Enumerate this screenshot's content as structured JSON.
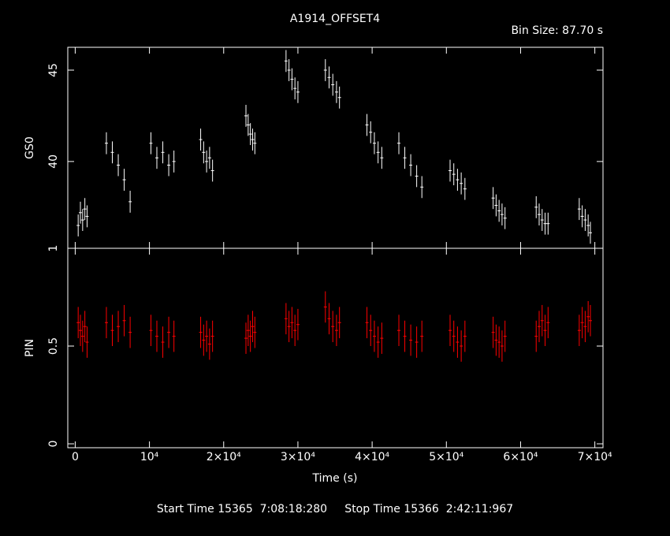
{
  "chart_data": [
    {
      "type": "scatter",
      "title": "A1914_OFFSET4",
      "subtitle": "Bin Size: 87.70 s",
      "ylabel": "GS0",
      "color": "#ffffff",
      "x": [
        400,
        700,
        1000,
        1300,
        1600,
        4200,
        5000,
        5800,
        6600,
        7400,
        10200,
        11000,
        11800,
        12600,
        13300,
        16900,
        17300,
        17700,
        18100,
        18500,
        23000,
        23300,
        23600,
        23900,
        24200,
        28400,
        28800,
        29200,
        29600,
        30000,
        33700,
        34200,
        34700,
        35200,
        35600,
        39300,
        39800,
        40300,
        40800,
        41300,
        43600,
        44400,
        45200,
        46000,
        46700,
        50500,
        51000,
        51500,
        52000,
        52500,
        56300,
        56700,
        57100,
        57500,
        57900,
        62100,
        62500,
        62900,
        63300,
        63700,
        67900,
        68300,
        68700,
        69100,
        69400
      ],
      "values": [
        36.5,
        37.2,
        36.8,
        37.4,
        37.0,
        41.0,
        40.5,
        39.8,
        39.0,
        37.8,
        41.0,
        40.2,
        40.5,
        39.8,
        40.0,
        41.2,
        40.5,
        40.0,
        40.2,
        39.5,
        42.5,
        42.0,
        41.5,
        41.2,
        41.0,
        45.5,
        45.0,
        44.5,
        44.0,
        43.8,
        45.0,
        44.6,
        44.2,
        43.8,
        43.5,
        42.0,
        41.6,
        41.0,
        40.5,
        40.2,
        41.0,
        40.2,
        39.8,
        39.2,
        38.6,
        39.5,
        39.3,
        39.0,
        38.8,
        38.5,
        38.0,
        37.6,
        37.3,
        37.1,
        36.9,
        37.5,
        37.1,
        36.8,
        36.6,
        36.6,
        37.4,
        37.0,
        36.8,
        36.5,
        36.1
      ],
      "errors": [
        0.6,
        0.6,
        0.6,
        0.6,
        0.6,
        0.6,
        0.6,
        0.6,
        0.6,
        0.6,
        0.6,
        0.6,
        0.6,
        0.6,
        0.6,
        0.6,
        0.6,
        0.6,
        0.6,
        0.6,
        0.6,
        0.6,
        0.6,
        0.6,
        0.6,
        0.6,
        0.6,
        0.6,
        0.6,
        0.6,
        0.6,
        0.6,
        0.6,
        0.6,
        0.6,
        0.6,
        0.6,
        0.6,
        0.6,
        0.6,
        0.6,
        0.6,
        0.6,
        0.6,
        0.6,
        0.6,
        0.6,
        0.6,
        0.6,
        0.6,
        0.6,
        0.6,
        0.6,
        0.6,
        0.6,
        0.6,
        0.6,
        0.6,
        0.6,
        0.6,
        0.6,
        0.6,
        0.6,
        0.6,
        0.6
      ],
      "xlim": [
        -1000,
        71100
      ],
      "xticks": [
        0,
        10000,
        20000,
        30000,
        40000,
        50000,
        60000,
        70000
      ],
      "ylim": [
        35.25,
        46.25
      ],
      "yticks": [
        40,
        45
      ],
      "grid": false
    },
    {
      "type": "scatter",
      "xlabel": "Time (s)",
      "ylabel": "PIN",
      "color": "#ff0000",
      "x": [
        400,
        700,
        1000,
        1300,
        1600,
        4200,
        5000,
        5800,
        6600,
        7400,
        10200,
        11000,
        11800,
        12600,
        13300,
        16900,
        17300,
        17700,
        18100,
        18500,
        23000,
        23300,
        23600,
        23900,
        24200,
        28400,
        28800,
        29200,
        29600,
        30000,
        33700,
        34200,
        34700,
        35200,
        35600,
        39300,
        39800,
        40300,
        40800,
        41300,
        43600,
        44400,
        45200,
        46000,
        46700,
        50500,
        51000,
        51500,
        52000,
        52500,
        56300,
        56700,
        57100,
        57500,
        57900,
        62100,
        62500,
        62900,
        63300,
        63700,
        67900,
        68300,
        68700,
        69100,
        69400
      ],
      "values": [
        0.62,
        0.58,
        0.55,
        0.6,
        0.52,
        0.62,
        0.58,
        0.6,
        0.63,
        0.57,
        0.58,
        0.55,
        0.52,
        0.57,
        0.55,
        0.57,
        0.53,
        0.55,
        0.51,
        0.55,
        0.54,
        0.58,
        0.55,
        0.6,
        0.57,
        0.64,
        0.6,
        0.62,
        0.58,
        0.61,
        0.7,
        0.64,
        0.6,
        0.58,
        0.62,
        0.62,
        0.58,
        0.55,
        0.52,
        0.54,
        0.58,
        0.55,
        0.53,
        0.52,
        0.55,
        0.58,
        0.55,
        0.52,
        0.5,
        0.55,
        0.57,
        0.53,
        0.52,
        0.5,
        0.55,
        0.55,
        0.6,
        0.63,
        0.58,
        0.62,
        0.58,
        0.62,
        0.6,
        0.65,
        0.63
      ],
      "errors": [
        0.08,
        0.08,
        0.08,
        0.08,
        0.08,
        0.08,
        0.08,
        0.08,
        0.08,
        0.08,
        0.08,
        0.08,
        0.08,
        0.08,
        0.08,
        0.08,
        0.08,
        0.08,
        0.08,
        0.08,
        0.08,
        0.08,
        0.08,
        0.08,
        0.08,
        0.08,
        0.08,
        0.08,
        0.08,
        0.08,
        0.08,
        0.08,
        0.08,
        0.08,
        0.08,
        0.08,
        0.08,
        0.08,
        0.08,
        0.08,
        0.08,
        0.08,
        0.08,
        0.08,
        0.08,
        0.08,
        0.08,
        0.08,
        0.08,
        0.08,
        0.08,
        0.08,
        0.08,
        0.08,
        0.08,
        0.08,
        0.08,
        0.08,
        0.08,
        0.08,
        0.08,
        0.08,
        0.08,
        0.08,
        0.08
      ],
      "xlim": [
        -1000,
        71100
      ],
      "xticks": [
        0,
        {
          "value": 10000,
          "label": "10⁴"
        },
        {
          "value": 20000,
          "label": "2×10⁴"
        },
        {
          "value": 30000,
          "label": "3×10⁴"
        },
        {
          "value": 40000,
          "label": "4×10⁴"
        },
        {
          "value": 50000,
          "label": "5×10⁴"
        },
        {
          "value": 60000,
          "label": "6×10⁴"
        },
        {
          "value": 70000,
          "label": "7×10⁴"
        }
      ],
      "ylim": [
        -0.02,
        1
      ],
      "yticks": [
        0,
        0.5,
        1
      ],
      "grid": false
    }
  ],
  "footer": "Start Time 15365  7:08:18:280     Stop Time 15366  2:42:11:967"
}
